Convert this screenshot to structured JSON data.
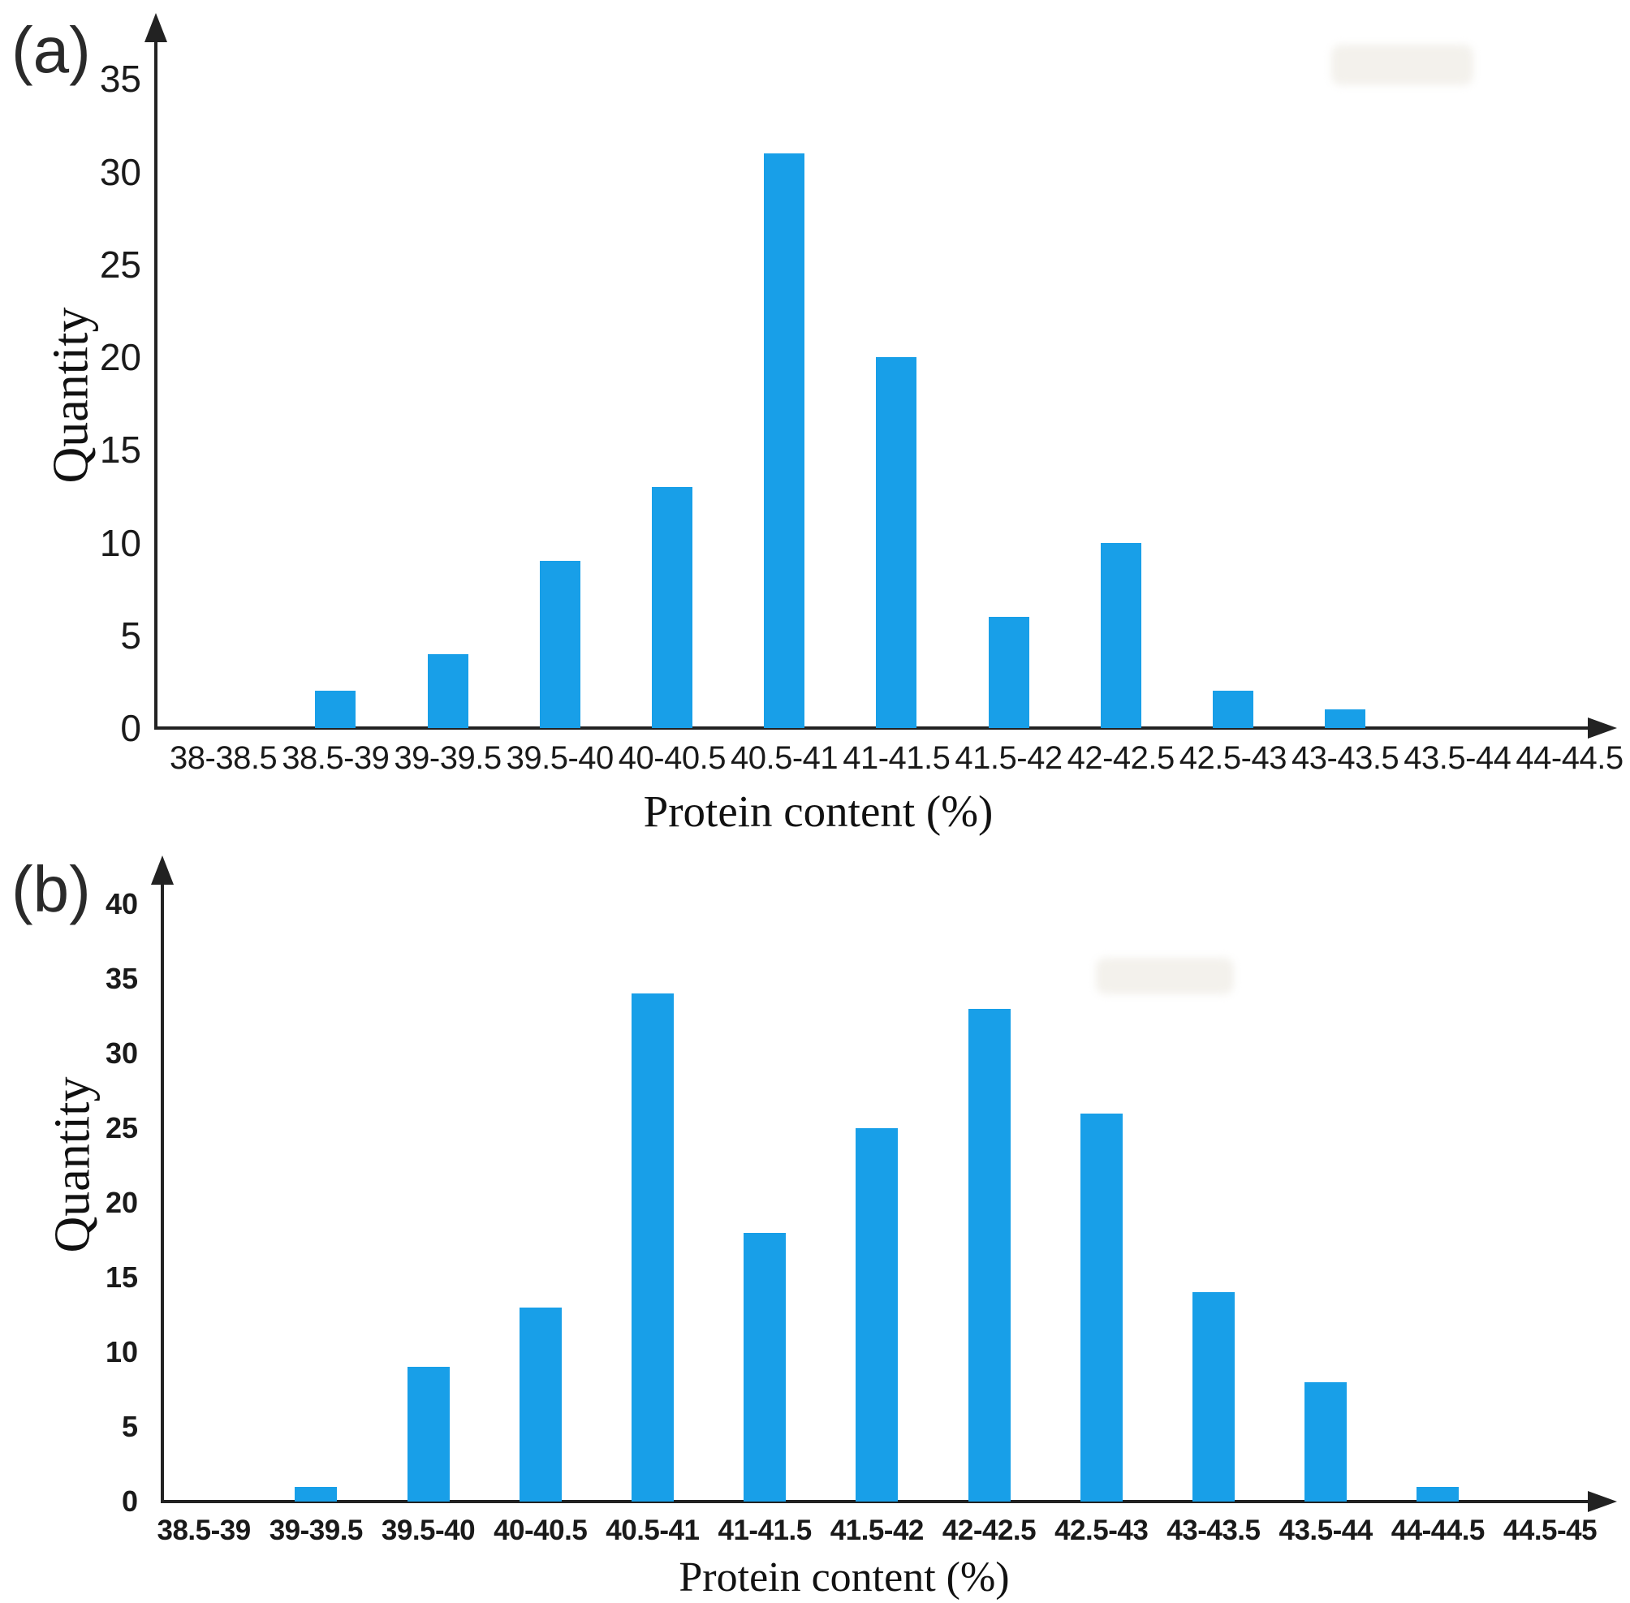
{
  "figure": {
    "background": "#ffffff",
    "bar_color": "#189fe8",
    "axis_color": "#222222"
  },
  "chart_data": [
    {
      "panel_label": "(a)",
      "type": "bar",
      "title": "",
      "xlabel": "Protein content (%)",
      "ylabel": "Quantity",
      "categories": [
        "38-38.5",
        "38.5-39",
        "39-39.5",
        "39.5-40",
        "40-40.5",
        "40.5-41",
        "41-41.5",
        "41.5-42",
        "42-42.5",
        "42.5-43",
        "43-43.5",
        "43.5-44",
        "44-44.5"
      ],
      "values": [
        0,
        2,
        4,
        9,
        13,
        31,
        20,
        6,
        10,
        2,
        1,
        0,
        0
      ],
      "yticks": [
        0,
        5,
        10,
        15,
        20,
        25,
        30,
        35
      ],
      "ylim": [
        0,
        38
      ],
      "bar_color": "#189fe8",
      "grid": false,
      "legend": "none"
    },
    {
      "panel_label": "(b)",
      "type": "bar",
      "title": "",
      "xlabel": "Protein content (%)",
      "ylabel": "Quantity",
      "categories": [
        "38.5-39",
        "39-39.5",
        "39.5-40",
        "40-40.5",
        "40.5-41",
        "41-41.5",
        "41.5-42",
        "42-42.5",
        "42.5-43",
        "43-43.5",
        "43.5-44",
        "44-44.5",
        "44.5-45"
      ],
      "values": [
        0,
        1,
        9,
        13,
        34,
        18,
        25,
        33,
        26,
        14,
        8,
        1,
        0
      ],
      "yticks": [
        0,
        5,
        10,
        15,
        20,
        25,
        30,
        35,
        40
      ],
      "ylim": [
        0,
        43
      ],
      "bar_color": "#189fe8",
      "grid": false,
      "legend": "none"
    }
  ]
}
